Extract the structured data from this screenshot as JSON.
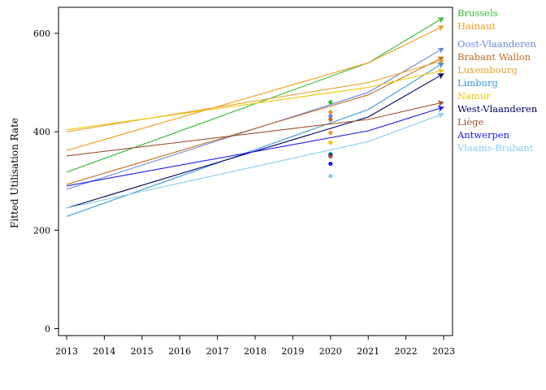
{
  "chart_data": {
    "type": "line",
    "title": "",
    "xlabel": "",
    "ylabel": "Fitted Utilisation Rate",
    "xlim": [
      2013,
      2023
    ],
    "ylim": [
      -15,
      655
    ],
    "x_ticks": [
      "2013",
      "2014",
      "2015",
      "2016",
      "2017",
      "2018",
      "2019",
      "2020",
      "2021",
      "2022",
      "2023"
    ],
    "y_ticks": [
      "0",
      "200",
      "400",
      "600"
    ],
    "x": [
      2013,
      2021,
      2023
    ],
    "grid": false,
    "legend": "right",
    "series": [
      {
        "name": "Brussels",
        "color": "#33bb33",
        "values": [
          318,
          540,
          632
        ],
        "point_2020": 460
      },
      {
        "name": "Hainaut",
        "color": "#f59a1e",
        "values": [
          362,
          540,
          615
        ],
        "point_2020": 440
      },
      {
        "name": "Oost-Vlaanderen",
        "color": "#6688dd",
        "values": [
          283,
          480,
          570
        ],
        "point_2020": 432
      },
      {
        "name": "Brabant Wallon",
        "color": "#c06a20",
        "values": [
          293,
          475,
          552
        ],
        "point_2020": 425
      },
      {
        "name": "Luxembourg",
        "color": "#e8a030",
        "values": [
          400,
          500,
          545
        ],
        "point_2020": 398
      },
      {
        "name": "Limburg",
        "color": "#3399dd",
        "values": [
          228,
          445,
          540
        ],
        "point_2020": 355
      },
      {
        "name": "Namur",
        "color": "#eec800",
        "values": [
          404,
          490,
          525
        ],
        "point_2020": 378
      },
      {
        "name": "West-Vlaanderen",
        "color": "#000066",
        "values": [
          245,
          430,
          518
        ],
        "point_2020": 352
      },
      {
        "name": "Liège",
        "color": "#a05030",
        "values": [
          351,
          425,
          460
        ],
        "point_2020": 350
      },
      {
        "name": "Antwerpen",
        "color": "#1a1aee",
        "values": [
          290,
          402,
          450
        ],
        "point_2020": 335
      },
      {
        "name": "Vlaams-Brabant",
        "color": "#88ccee",
        "values": [
          245,
          380,
          437
        ],
        "point_2020": 310
      }
    ]
  }
}
